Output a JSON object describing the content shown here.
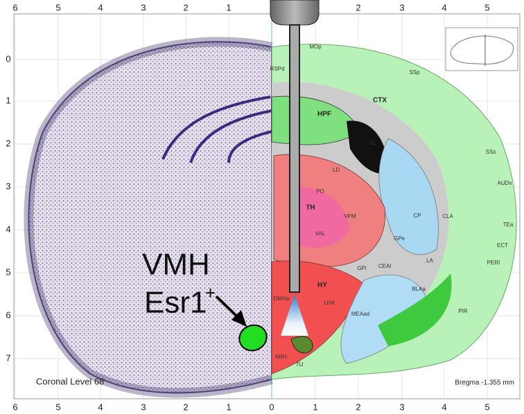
{
  "axis": {
    "top": [
      "6",
      "5",
      "4",
      "3",
      "2",
      "1",
      "2",
      "3",
      "4",
      "5"
    ],
    "bottom": [
      "6",
      "5",
      "4",
      "3",
      "2",
      "1",
      "0",
      "1",
      "2",
      "3",
      "4",
      "5"
    ],
    "left": [
      "0",
      "1",
      "2",
      "3",
      "4",
      "5",
      "6",
      "7"
    ]
  },
  "labels": {
    "level": "Coronal Level 68",
    "bregma": "Bregma -1.355 mm",
    "target": "VMH",
    "marker": "Esr1",
    "marker_sup": "+"
  },
  "regions": {
    "ctx": "CTX",
    "hpf": "HPF",
    "th": "TH",
    "hy": "HY",
    "lha": "LHA",
    "cp": "CP",
    "vl": "VL",
    "gpe": "GPe",
    "gpi": "GPi",
    "ssp": "SSp",
    "mop": "MOp",
    "pir": "PIR",
    "vpm": "VPM",
    "val": "VAL",
    "ld": "LD",
    "po": "PO",
    "cla": "CLA",
    "ceal": "CEAl",
    "bla": "BLAa",
    "la": "LA",
    "meaad": "MEAad",
    "arh": "ARH",
    "dmh": "DMHa",
    "tu": "TU",
    "ss": "SSs",
    "aud": "AUDv",
    "tea": "TEa",
    "ect": "ECT",
    "peri": "PERI",
    "rsp": "RSPd"
  }
}
